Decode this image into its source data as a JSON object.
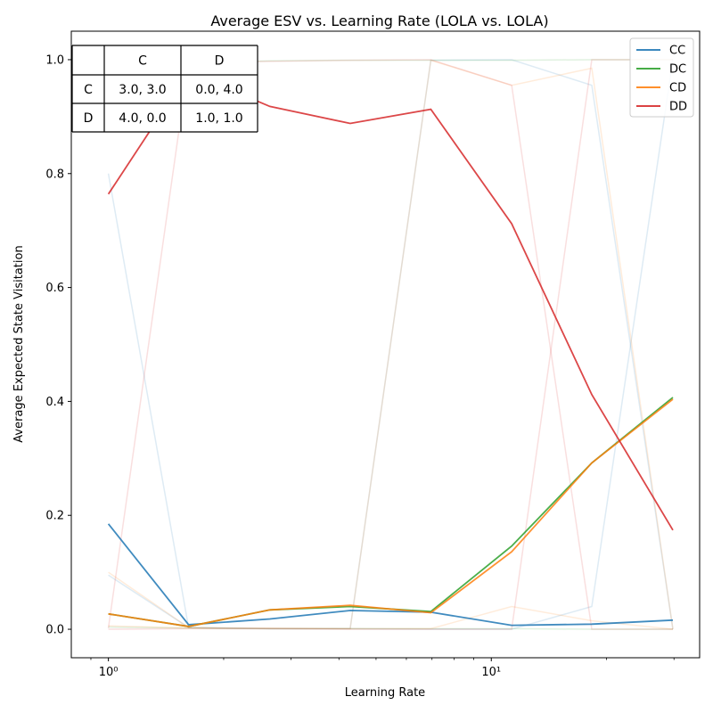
{
  "chart_data": {
    "type": "line",
    "title": "Average ESV vs. Learning Rate (LOLA vs. LOLA)",
    "xlabel": "Learning Rate",
    "ylabel": "Average Expected State Visitation",
    "xscale": "log",
    "xlim": [
      0.8,
      35
    ],
    "ylim": [
      -0.05,
      1.05
    ],
    "xticks": [
      1,
      10
    ],
    "xtick_labels": [
      "10⁰",
      "10¹"
    ],
    "yticks": [
      0.0,
      0.2,
      0.4,
      0.6,
      0.8,
      1.0
    ],
    "ytick_labels": [
      "0.0",
      "0.2",
      "0.4",
      "0.6",
      "0.8",
      "1.0"
    ],
    "grid": false,
    "legend_position": "top-right",
    "x": [
      1.0,
      1.62,
      2.64,
      4.28,
      6.95,
      11.3,
      18.3,
      29.8
    ],
    "series": [
      {
        "name": "CC",
        "color": "#1f77b4",
        "values": [
          0.185,
          0.008,
          0.018,
          0.033,
          0.03,
          0.007,
          0.009,
          0.016
        ]
      },
      {
        "name": "DC",
        "color": "#2ca02c",
        "values": [
          0.027,
          0.005,
          0.034,
          0.04,
          0.031,
          0.146,
          0.292,
          0.407
        ]
      },
      {
        "name": "CD",
        "color": "#ff7f0e",
        "values": [
          0.027,
          0.005,
          0.034,
          0.042,
          0.029,
          0.136,
          0.292,
          0.404
        ]
      },
      {
        "name": "DD",
        "color": "#d62728",
        "values": [
          0.764,
          0.978,
          0.918,
          0.888,
          0.913,
          0.712,
          0.412,
          0.174
        ]
      }
    ],
    "faint_series": [
      {
        "color": "#1f77b4",
        "values": [
          0.095,
          0.003,
          0.001,
          0.001,
          0.999,
          1.0,
          0.955,
          0.0
        ]
      },
      {
        "color": "#1f77b4",
        "values": [
          0.8,
          0.003,
          0.001,
          0.001,
          0.0,
          0.0,
          0.04,
          1.0
        ]
      },
      {
        "color": "#2ca02c",
        "values": [
          0.989,
          0.994,
          0.998,
          0.999,
          0.999,
          0.999,
          1.0,
          1.0
        ]
      },
      {
        "color": "#2ca02c",
        "values": [
          0.004,
          0.002,
          0.001,
          0.001,
          0.001,
          0.001,
          0.0,
          0.0
        ]
      },
      {
        "color": "#ff7f0e",
        "values": [
          0.1,
          0.003,
          0.002,
          0.001,
          0.999,
          0.955,
          0.985,
          0.0
        ]
      },
      {
        "color": "#ff7f0e",
        "values": [
          0.006,
          0.002,
          0.001,
          0.001,
          0.001,
          0.04,
          0.015,
          0.0
        ]
      },
      {
        "color": "#d62728",
        "values": [
          0.002,
          0.995,
          0.997,
          0.999,
          1.0,
          0.955,
          0.0,
          0.0
        ]
      },
      {
        "color": "#d62728",
        "values": [
          0.0,
          0.001,
          0.001,
          0.0,
          0.0,
          0.0,
          1.0,
          1.0
        ]
      }
    ]
  },
  "payoff_table": {
    "col_headers": [
      "C",
      "D"
    ],
    "rows": [
      {
        "label": "C",
        "cells": [
          "3.0, 3.0",
          "0.0, 4.0"
        ]
      },
      {
        "label": "D",
        "cells": [
          "4.0, 0.0",
          "1.0, 1.0"
        ]
      }
    ]
  }
}
